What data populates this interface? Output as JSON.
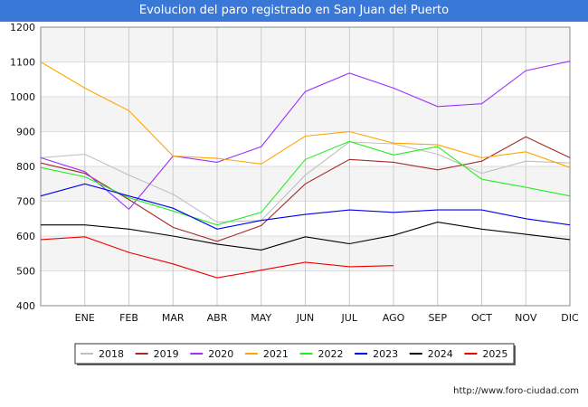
{
  "title": "Evolucion del paro registrado en San Juan del Puerto",
  "credit": "http://www.foro-ciudad.com",
  "chart_data": {
    "type": "line",
    "categories": [
      "",
      "ENE",
      "FEB",
      "MAR",
      "ABR",
      "MAY",
      "JUN",
      "JUL",
      "AGO",
      "SEP",
      "OCT",
      "NOV",
      "DIC"
    ],
    "ylim": [
      400,
      1200
    ],
    "yticks": [
      400,
      500,
      600,
      700,
      800,
      900,
      1000,
      1100,
      1200
    ],
    "grid": true,
    "legend_position": "bottom",
    "series": [
      {
        "name": "2018",
        "color": "#c0c0c0",
        "values": [
          825,
          835,
          775,
          720,
          640,
          645,
          775,
          870,
          865,
          835,
          780,
          815,
          810
        ]
      },
      {
        "name": "2019",
        "color": "#a52a2a",
        "values": [
          810,
          780,
          705,
          625,
          585,
          630,
          750,
          820,
          812,
          790,
          815,
          885,
          825
        ]
      },
      {
        "name": "2020",
        "color": "#9b30ff",
        "values": [
          825,
          785,
          677,
          830,
          812,
          857,
          1015,
          1068,
          1025,
          972,
          980,
          1075,
          1102
        ]
      },
      {
        "name": "2021",
        "color": "#ffa500",
        "values": [
          1100,
          1025,
          960,
          830,
          823,
          807,
          887,
          900,
          867,
          862,
          825,
          842,
          797
        ]
      },
      {
        "name": "2022",
        "color": "#22ee22",
        "values": [
          797,
          770,
          710,
          672,
          632,
          668,
          820,
          872,
          833,
          857,
          763,
          740,
          715
        ]
      },
      {
        "name": "2023",
        "color": "#0000ee",
        "values": [
          715,
          750,
          715,
          680,
          620,
          645,
          662,
          675,
          668,
          675,
          675,
          650,
          632
        ]
      },
      {
        "name": "2024",
        "color": "#000000",
        "values": [
          632,
          632,
          620,
          600,
          577,
          560,
          598,
          578,
          602,
          640,
          620,
          605,
          590
        ]
      },
      {
        "name": "2025",
        "color": "#ee0000",
        "values": [
          590,
          598,
          553,
          520,
          480,
          502,
          525,
          512,
          515,
          null,
          null,
          null,
          null
        ]
      }
    ]
  }
}
